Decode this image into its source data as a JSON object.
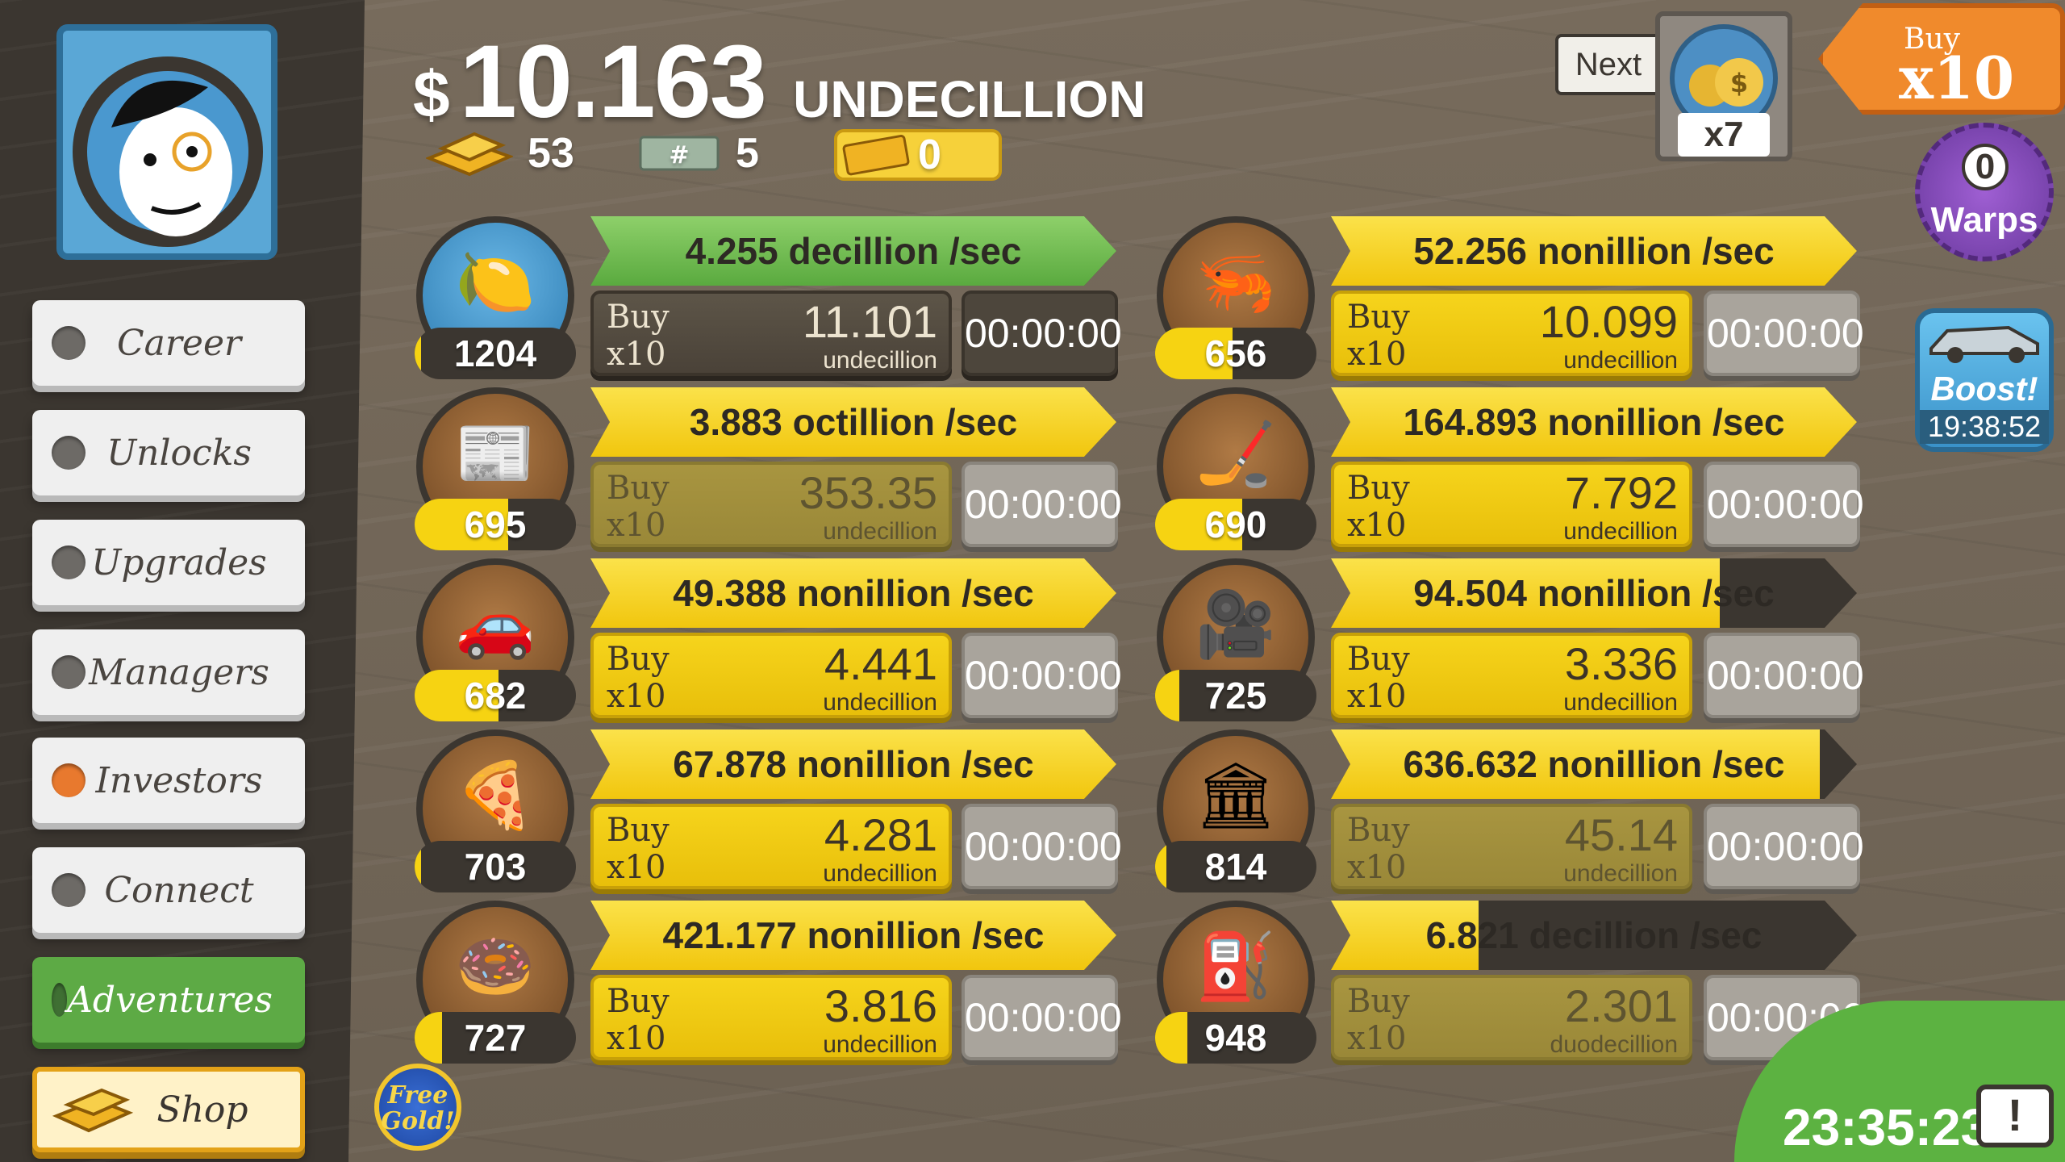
{
  "header": {
    "money_symbol": "$",
    "money_amount": "10.163",
    "money_unit": "UNDECILLION",
    "gold_count": "53",
    "megabucks_count": "5",
    "ticket_count": "0"
  },
  "sidebar": {
    "items": [
      {
        "label": "Career",
        "status": "grey"
      },
      {
        "label": "Unlocks",
        "status": "grey"
      },
      {
        "label": "Upgrades",
        "status": "grey"
      },
      {
        "label": "Managers",
        "status": "grey"
      },
      {
        "label": "Investors",
        "status": "orange"
      },
      {
        "label": "Connect",
        "status": "grey"
      },
      {
        "label": "Adventures",
        "status": "grey"
      },
      {
        "label": "Shop",
        "status": "none"
      }
    ]
  },
  "top_right": {
    "next_label": "Next",
    "next_multiplier": "x7",
    "buy_label": "Buy",
    "buy_multiplier": "x10",
    "warps_count": "0",
    "warps_label": "Warps",
    "boost_label": "Boost!",
    "boost_timer": "19:38:52",
    "free_gold_line1": "Free",
    "free_gold_line2": "Gold!",
    "bottom_timer": "23:35:23"
  },
  "businesses": [
    {
      "icon": "lemon-icon",
      "glyph": "🍋",
      "count": "1204",
      "count_fill": 0.04,
      "rate": "4.255 decillion /sec",
      "rate_fill": 1.0,
      "rate_color": "green",
      "buy": "Buy",
      "mult": "x10",
      "cost": "11.101",
      "cost_unit": "undecillion",
      "buy_style": "dark",
      "timer": "00:00:00",
      "timer_style": "dark",
      "icon_style": "blue"
    },
    {
      "icon": "newspaper-icon",
      "glyph": "📰",
      "count": "695",
      "count_fill": 0.58,
      "rate": "3.883 octillion /sec",
      "rate_fill": 1.0,
      "rate_color": "yellow",
      "buy": "Buy",
      "mult": "x10",
      "cost": "353.35",
      "cost_unit": "undecillion",
      "buy_style": "dim",
      "timer": "00:00:00",
      "timer_style": "light",
      "icon_style": "brown"
    },
    {
      "icon": "car-wash-icon",
      "glyph": "🚗",
      "count": "682",
      "count_fill": 0.52,
      "rate": "49.388 nonillion /sec",
      "rate_fill": 1.0,
      "rate_color": "yellow",
      "buy": "Buy",
      "mult": "x10",
      "cost": "4.441",
      "cost_unit": "undecillion",
      "buy_style": "yellow",
      "timer": "00:00:00",
      "timer_style": "light",
      "icon_style": "brown"
    },
    {
      "icon": "pizza-icon",
      "glyph": "🍕",
      "count": "703",
      "count_fill": 0.04,
      "rate": "67.878 nonillion /sec",
      "rate_fill": 1.0,
      "rate_color": "yellow",
      "buy": "Buy",
      "mult": "x10",
      "cost": "4.281",
      "cost_unit": "undecillion",
      "buy_style": "yellow",
      "timer": "00:00:00",
      "timer_style": "light",
      "icon_style": "brown"
    },
    {
      "icon": "donut-icon",
      "glyph": "🍩",
      "count": "727",
      "count_fill": 0.17,
      "rate": "421.177 nonillion /sec",
      "rate_fill": 1.0,
      "rate_color": "yellow",
      "buy": "Buy",
      "mult": "x10",
      "cost": "3.816",
      "cost_unit": "undecillion",
      "buy_style": "yellow",
      "timer": "00:00:00",
      "timer_style": "light",
      "icon_style": "brown"
    },
    {
      "icon": "shrimp-icon",
      "glyph": "🦐",
      "count": "656",
      "count_fill": 0.48,
      "rate": "52.256 nonillion /sec",
      "rate_fill": 1.0,
      "rate_color": "yellow",
      "buy": "Buy",
      "mult": "x10",
      "cost": "10.099",
      "cost_unit": "undecillion",
      "buy_style": "yellow",
      "timer": "00:00:00",
      "timer_style": "light",
      "icon_style": "brown"
    },
    {
      "icon": "hockey-icon",
      "glyph": "🏒",
      "count": "690",
      "count_fill": 0.54,
      "rate": "164.893 nonillion /sec",
      "rate_fill": 1.0,
      "rate_color": "yellow",
      "buy": "Buy",
      "mult": "x10",
      "cost": "7.792",
      "cost_unit": "undecillion",
      "buy_style": "yellow",
      "timer": "00:00:00",
      "timer_style": "light",
      "icon_style": "brown"
    },
    {
      "icon": "movie-camera-icon",
      "glyph": "🎥",
      "count": "725",
      "count_fill": 0.15,
      "rate": "94.504 nonillion /sec",
      "rate_fill": 0.74,
      "rate_color": "yellow",
      "buy": "Buy",
      "mult": "x10",
      "cost": "3.336",
      "cost_unit": "undecillion",
      "buy_style": "yellow",
      "timer": "00:00:00",
      "timer_style": "light",
      "icon_style": "brown"
    },
    {
      "icon": "bank-icon",
      "glyph": "🏛",
      "count": "814",
      "count_fill": 0.07,
      "rate": "636.632 nonillion /sec",
      "rate_fill": 0.93,
      "rate_color": "yellow",
      "buy": "Buy",
      "mult": "x10",
      "cost": "45.14",
      "cost_unit": "undecillion",
      "buy_style": "dim",
      "timer": "00:00:00",
      "timer_style": "light",
      "icon_style": "brown"
    },
    {
      "icon": "oil-rig-icon",
      "glyph": "⛽",
      "count": "948",
      "count_fill": 0.2,
      "rate": "6.821 decillion /sec",
      "rate_fill": 0.28,
      "rate_color": "yellow",
      "buy": "Buy",
      "mult": "x10",
      "cost": "2.301",
      "cost_unit": "duodecillion",
      "buy_style": "dim",
      "timer": "00:00:06",
      "timer_style": "light",
      "icon_style": "brown"
    }
  ]
}
